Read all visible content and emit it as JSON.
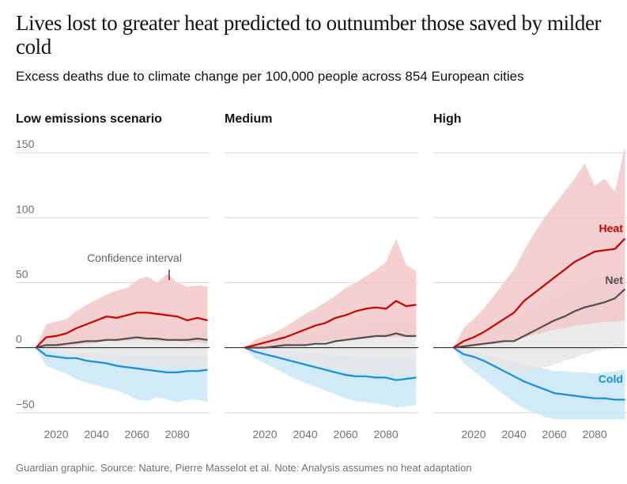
{
  "header": {
    "title": "Lives lost to greater heat predicted to outnumber those saved by milder cold",
    "subtitle": "Excess deaths due to climate change per 100,000 people across 854 European cities"
  },
  "footer": {
    "source": "Guardian graphic. Source: Nature, Pierre Masselot et al. Note: Analysis assumes no heat adaptation"
  },
  "colors": {
    "heat": "#c70000",
    "heat_band": "#f2c8c8",
    "cold": "#1a8fd6",
    "cold_band": "#c8e6f6",
    "net": "#505050",
    "net_band": "#e6e6e6",
    "grid": "#d6d6d6",
    "zero_line": "#121212"
  },
  "chart_data": {
    "type": "area",
    "facets": [
      "Low emissions scenario",
      "Medium",
      "High"
    ],
    "x": [
      2010,
      2015,
      2020,
      2025,
      2030,
      2035,
      2040,
      2045,
      2050,
      2055,
      2060,
      2065,
      2070,
      2075,
      2080,
      2085,
      2090,
      2095
    ],
    "xticks": [
      "2020",
      "2040",
      "2060",
      "2080"
    ],
    "yticks": [
      "150",
      "100",
      "50",
      "0",
      "−50"
    ],
    "ylim": [
      -55,
      155
    ],
    "xlim": [
      2000,
      2096
    ],
    "grid": true,
    "annotations": {
      "confidence_interval": "Confidence interval"
    },
    "series_labels": {
      "heat": "Heat",
      "net": "Net",
      "cold": "Cold"
    },
    "panels": [
      {
        "name": "Low emissions scenario",
        "heat": [
          0,
          8,
          9,
          11,
          15,
          18,
          21,
          24,
          23,
          25,
          27,
          27,
          26,
          25,
          24,
          21,
          23,
          21
        ],
        "heat_low": [
          0,
          0,
          0,
          1,
          2,
          3,
          4,
          5,
          5,
          5,
          6,
          6,
          5,
          5,
          5,
          4,
          4,
          3
        ],
        "heat_high": [
          0,
          18,
          20,
          22,
          28,
          33,
          37,
          41,
          44,
          46,
          52,
          55,
          50,
          57,
          50,
          47,
          48,
          47
        ],
        "net": [
          0,
          2,
          2,
          3,
          4,
          5,
          5,
          6,
          6,
          7,
          8,
          7,
          7,
          6,
          6,
          6,
          7,
          6
        ],
        "net_low": [
          0,
          -2,
          -4,
          -6,
          -8,
          -9,
          -10,
          -11,
          -12,
          -13,
          -14,
          -14,
          -15,
          -15,
          -15,
          -16,
          -16,
          -16
        ],
        "net_high": [
          0,
          5,
          6,
          8,
          10,
          11,
          12,
          13,
          13,
          14,
          15,
          14,
          14,
          13,
          13,
          13,
          13,
          12
        ],
        "cold": [
          0,
          -6,
          -7,
          -8,
          -8,
          -10,
          -11,
          -12,
          -14,
          -15,
          -16,
          -17,
          -18,
          -19,
          -19,
          -18,
          -18,
          -17
        ],
        "cold_low": [
          0,
          -14,
          -17,
          -20,
          -24,
          -27,
          -29,
          -31,
          -33,
          -36,
          -40,
          -41,
          -38,
          -40,
          -42,
          -40,
          -40,
          -42
        ],
        "cold_high": [
          0,
          -2,
          -3,
          -3,
          -4,
          -4,
          -4,
          -5,
          -5,
          -6,
          -6,
          -6,
          -6,
          -6,
          -6,
          -6,
          -6,
          -6
        ]
      },
      {
        "name": "Medium",
        "heat": [
          0,
          2,
          4,
          6,
          8,
          11,
          14,
          17,
          19,
          23,
          25,
          28,
          30,
          31,
          30,
          36,
          32,
          33
        ],
        "heat_low": [
          0,
          0,
          0,
          1,
          1,
          2,
          3,
          4,
          5,
          5,
          6,
          7,
          7,
          8,
          8,
          8,
          8,
          8
        ],
        "heat_high": [
          0,
          6,
          9,
          12,
          16,
          21,
          26,
          30,
          35,
          40,
          46,
          50,
          55,
          60,
          66,
          84,
          64,
          59
        ],
        "net": [
          0,
          0,
          0,
          1,
          2,
          2,
          2,
          3,
          3,
          5,
          6,
          7,
          8,
          9,
          9,
          11,
          9,
          9
        ],
        "net_low": [
          0,
          -3,
          -5,
          -7,
          -9,
          -11,
          -12,
          -13,
          -15,
          -17,
          -18,
          -19,
          -20,
          -20,
          -20,
          -21,
          -21,
          -21
        ],
        "net_high": [
          0,
          2,
          4,
          6,
          8,
          9,
          10,
          11,
          13,
          15,
          16,
          17,
          18,
          19,
          19,
          20,
          19,
          18
        ],
        "cold": [
          0,
          -3,
          -5,
          -7,
          -9,
          -11,
          -13,
          -15,
          -17,
          -19,
          -21,
          -22,
          -22,
          -23,
          -23,
          -25,
          -24,
          -23
        ],
        "cold_low": [
          0,
          -8,
          -12,
          -16,
          -20,
          -24,
          -27,
          -30,
          -33,
          -36,
          -39,
          -41,
          -42,
          -43,
          -44,
          -46,
          -45,
          -44
        ],
        "cold_high": [
          0,
          -1,
          -2,
          -2,
          -3,
          -3,
          -4,
          -4,
          -5,
          -6,
          -6,
          -7,
          -7,
          -8,
          -8,
          -8,
          -8,
          -8
        ]
      },
      {
        "name": "High",
        "heat": [
          0,
          5,
          8,
          12,
          17,
          22,
          27,
          36,
          42,
          48,
          54,
          60,
          66,
          70,
          74,
          75,
          76,
          84
        ],
        "heat_low": [
          0,
          0,
          1,
          2,
          3,
          4,
          6,
          8,
          10,
          12,
          14,
          15,
          17,
          18,
          19,
          20,
          20,
          21
        ],
        "heat_high": [
          0,
          15,
          22,
          30,
          40,
          50,
          60,
          75,
          88,
          100,
          110,
          120,
          130,
          142,
          125,
          130,
          120,
          155
        ],
        "net": [
          0,
          1,
          2,
          3,
          4,
          5,
          5,
          9,
          13,
          17,
          21,
          24,
          28,
          31,
          33,
          35,
          38,
          45
        ],
        "net_low": [
          0,
          -5,
          -8,
          -11,
          -14,
          -17,
          -19,
          -19,
          -17,
          -15,
          -13,
          -10,
          -8,
          -5,
          -3,
          -1,
          0,
          1
        ],
        "net_high": [
          0,
          6,
          9,
          12,
          15,
          18,
          22,
          27,
          32,
          36,
          40,
          44,
          48,
          52,
          55,
          58,
          58,
          60
        ],
        "cold": [
          0,
          -5,
          -7,
          -10,
          -14,
          -18,
          -22,
          -26,
          -29,
          -32,
          -35,
          -36,
          -37,
          -38,
          -39,
          -39,
          -40,
          -40
        ],
        "cold_low": [
          0,
          -12,
          -18,
          -24,
          -30,
          -36,
          -42,
          -47,
          -50,
          -53,
          -55,
          -55,
          -55,
          -55,
          -55,
          -55,
          -55,
          -55
        ],
        "cold_high": [
          0,
          -2,
          -3,
          -5,
          -7,
          -9,
          -11,
          -13,
          -15,
          -16,
          -18,
          -18,
          -19,
          -19,
          -20,
          -19,
          -18,
          -17
        ]
      }
    ]
  }
}
